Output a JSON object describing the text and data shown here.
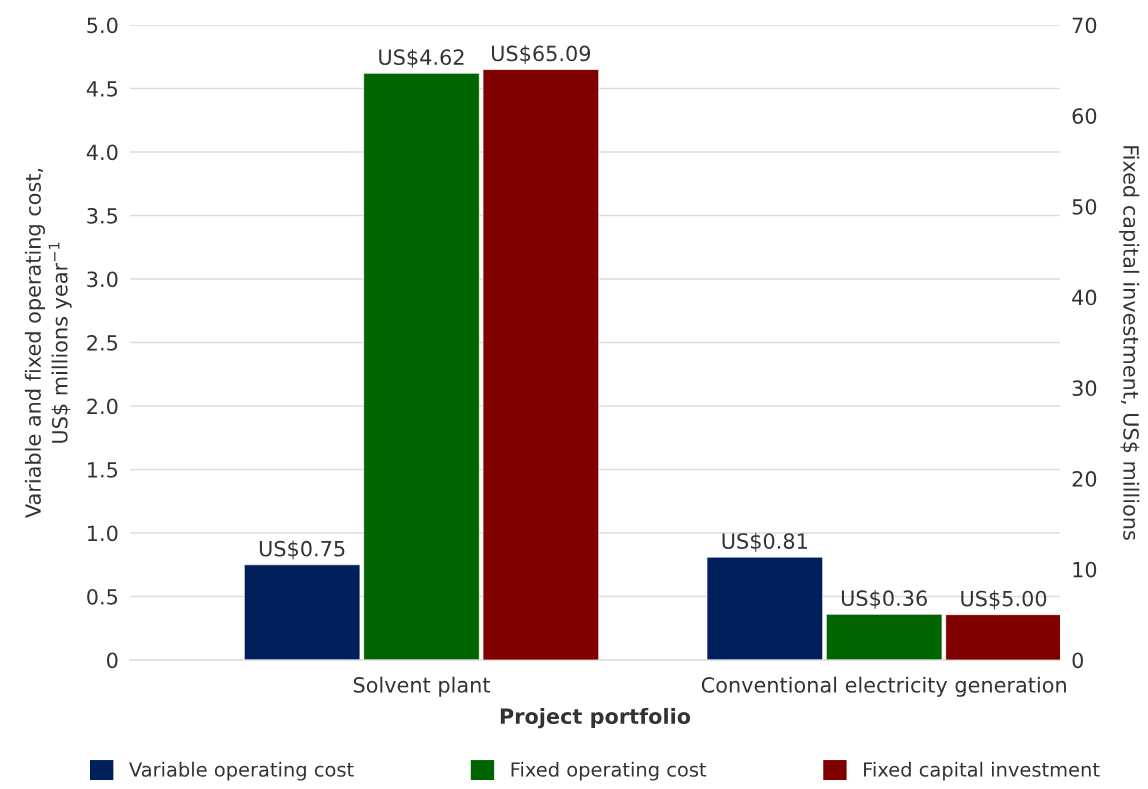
{
  "chart_data": {
    "type": "bar",
    "xlabel": "Project portfolio",
    "ylabel": "Variable and fixed operating cost,\nUS$ millions year$^{−1}$",
    "y2label": "Fixed capital investment, US$ millions",
    "categories": [
      "Solvent plant",
      "Conventional electricity generation"
    ],
    "series": [
      {
        "name": "Variable operating cost",
        "color": "#001f5b",
        "values": [
          0.75,
          0.81
        ],
        "value_labels": [
          "US$0.75",
          "US$0.81"
        ]
      },
      {
        "name": "Fixed operating cost",
        "color": "#006400",
        "values": [
          4.62,
          0.36
        ],
        "value_labels": [
          "US$4.62",
          "US$0.36"
        ]
      },
      {
        "name": "Fixed capital investment",
        "color": "#800000",
        "values": [
          65.09,
          5.0
        ],
        "value_labels": [
          "US$65.09",
          "US$5.00"
        ],
        "axis": "y2"
      }
    ],
    "ylim": [
      0,
      5
    ],
    "yticks": [
      0,
      0.5,
      {
        "value": 1,
        "label": "1.0"
      },
      1.5,
      {
        "value": 2,
        "label": "2.0"
      },
      2.5,
      {
        "value": 3,
        "label": "3.0"
      },
      3.5,
      {
        "value": 4,
        "label": "4.0"
      },
      4.5,
      {
        "value": 5,
        "label": "5.0"
      }
    ],
    "y2lim": [
      0,
      70
    ],
    "y2ticks": [
      0,
      10,
      20,
      30,
      40,
      50,
      60,
      70
    ],
    "grid": "y",
    "legend": "bottom"
  }
}
